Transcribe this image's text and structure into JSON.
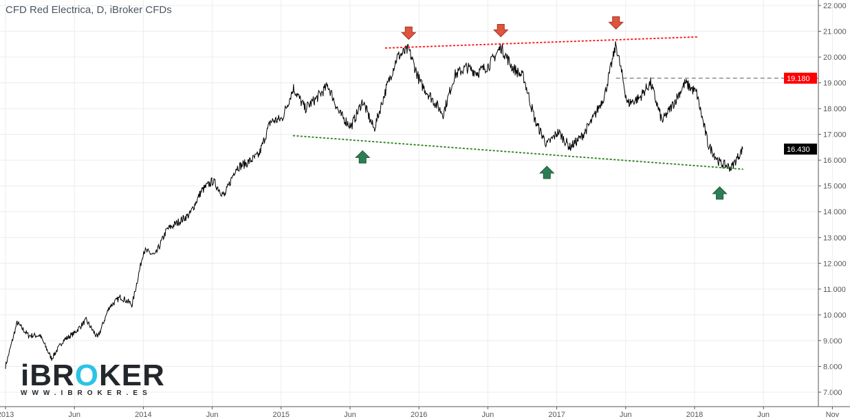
{
  "header": {
    "title": "CFD Red Electrica, D, iBroker CFDs"
  },
  "logo": {
    "text_i": "iBR",
    "text_o": "O",
    "text_rest": "KER",
    "url": "WWW.IBROKER.ES"
  },
  "colors": {
    "resistance": "#ff2020",
    "support": "#3a8a2a",
    "arrow_down": "#e0553e",
    "arrow_up": "#2e7d55",
    "last_price_bg": "#000000",
    "level_bg": "#ff0000"
  },
  "chart_data": {
    "type": "line",
    "title": "CFD Red Electrica, D, iBroker CFDs",
    "ylim": [
      7,
      22
    ],
    "y_ticks": [
      "22.000",
      "21.000",
      "20.000",
      "19.000",
      "18.000",
      "17.000",
      "16.000",
      "15.000",
      "14.000",
      "13.000",
      "12.000",
      "11.000",
      "10.000",
      "9.000",
      "8.000",
      "7.000"
    ],
    "x_ticks": [
      "2013",
      "Jun",
      "2014",
      "Jun",
      "2015",
      "Jun",
      "2016",
      "Jun",
      "2017",
      "Jun",
      "2018",
      "Jun",
      "Nov"
    ],
    "grid": true,
    "series": [
      {
        "x": [
          "2013-01",
          "2013-02",
          "2013-03",
          "2013-04",
          "2013-05",
          "2013-06",
          "2013-07",
          "2013-08",
          "2013-09",
          "2013-10",
          "2013-11",
          "2013-12",
          "2014-01",
          "2014-02",
          "2014-03",
          "2014-04",
          "2014-05",
          "2014-06",
          "2014-07",
          "2014-08",
          "2014-09",
          "2014-10",
          "2014-11",
          "2014-12",
          "2015-01",
          "2015-02",
          "2015-03",
          "2015-04",
          "2015-05",
          "2015-06",
          "2015-07",
          "2015-08",
          "2015-09",
          "2015-10",
          "2015-11",
          "2015-12",
          "2016-01",
          "2016-02",
          "2016-03",
          "2016-04",
          "2016-05",
          "2016-06",
          "2016-07",
          "2016-08",
          "2016-09",
          "2016-10",
          "2016-11",
          "2016-12",
          "2017-01",
          "2017-02",
          "2017-03",
          "2017-04",
          "2017-05",
          "2017-06",
          "2017-07",
          "2017-08",
          "2017-09",
          "2017-10",
          "2017-11",
          "2017-12",
          "2018-01",
          "2018-02",
          "2018-03",
          "2018-04",
          "2018-05"
        ],
        "values": [
          8.0,
          9.7,
          9.2,
          9.2,
          8.3,
          9.0,
          9.3,
          9.8,
          9.1,
          10.3,
          10.7,
          10.4,
          12.5,
          12.3,
          13.3,
          13.6,
          13.9,
          14.8,
          15.2,
          14.6,
          15.7,
          15.9,
          16.2,
          17.5,
          17.6,
          18.8,
          18.0,
          18.4,
          18.9,
          17.8,
          17.3,
          18.3,
          17.2,
          18.7,
          20.0,
          20.3,
          19.0,
          18.4,
          17.8,
          19.3,
          19.6,
          19.4,
          19.7,
          20.4,
          19.6,
          19.2,
          17.5,
          16.6,
          17.1,
          16.5,
          16.9,
          17.6,
          18.5,
          20.5,
          18.2,
          18.4,
          19.0,
          17.5,
          18.2,
          19.0,
          18.6,
          16.6,
          15.9,
          15.7,
          16.43
        ]
      }
    ],
    "price_labels": {
      "level": "19.180",
      "last": "16.430"
    },
    "annotations": {
      "resistance": [
        [
          "2015-10",
          20.35
        ],
        [
          "2018-01",
          20.78
        ]
      ],
      "support": [
        [
          "2015-02",
          16.95
        ],
        [
          "2018-05",
          15.65
        ]
      ],
      "level_line": {
        "from": "2017-06",
        "price": 19.18
      },
      "arrows_down": [
        [
          "2015-12",
          20.9
        ],
        [
          "2016-08",
          21.0
        ],
        [
          "2017-06",
          21.3
        ]
      ],
      "arrows_up": [
        [
          "2015-08",
          16.1
        ],
        [
          "2016-12",
          15.5
        ],
        [
          "2018-03",
          14.7
        ]
      ]
    }
  }
}
